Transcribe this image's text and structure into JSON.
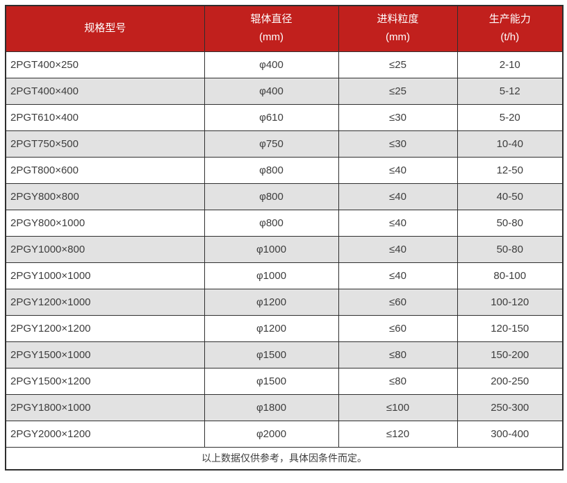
{
  "colors": {
    "header_bg": "#c1201d",
    "header_text": "#ffffff",
    "row_bg": "#ffffff",
    "row_alt_bg": "#e2e2e2",
    "border": "#2e2e2e",
    "cell_text": "#3d3d3d"
  },
  "table": {
    "columns": [
      {
        "title": "规格型号",
        "unit": ""
      },
      {
        "title": "辊体直径",
        "unit": "(mm)"
      },
      {
        "title": "进料粒度",
        "unit": "(mm)"
      },
      {
        "title": "生产能力",
        "unit": "(t/h)"
      }
    ],
    "rows": [
      {
        "model": "2PGT400×250",
        "roller_diameter": "φ400",
        "feed_size": "≤25",
        "capacity": "2-10"
      },
      {
        "model": "2PGT400×400",
        "roller_diameter": "φ400",
        "feed_size": "≤25",
        "capacity": "5-12"
      },
      {
        "model": "2PGT610×400",
        "roller_diameter": "φ610",
        "feed_size": "≤30",
        "capacity": "5-20"
      },
      {
        "model": "2PGT750×500",
        "roller_diameter": "φ750",
        "feed_size": "≤30",
        "capacity": "10-40"
      },
      {
        "model": "2PGT800×600",
        "roller_diameter": "φ800",
        "feed_size": "≤40",
        "capacity": "12-50"
      },
      {
        "model": "2PGY800×800",
        "roller_diameter": "φ800",
        "feed_size": "≤40",
        "capacity": "40-50"
      },
      {
        "model": "2PGY800×1000",
        "roller_diameter": "φ800",
        "feed_size": "≤40",
        "capacity": "50-80"
      },
      {
        "model": "2PGY1000×800",
        "roller_diameter": "φ1000",
        "feed_size": "≤40",
        "capacity": "50-80"
      },
      {
        "model": "2PGY1000×1000",
        "roller_diameter": "φ1000",
        "feed_size": "≤40",
        "capacity": "80-100"
      },
      {
        "model": "2PGY1200×1000",
        "roller_diameter": "φ1200",
        "feed_size": "≤60",
        "capacity": "100-120"
      },
      {
        "model": "2PGY1200×1200",
        "roller_diameter": "φ1200",
        "feed_size": "≤60",
        "capacity": "120-150"
      },
      {
        "model": "2PGY1500×1000",
        "roller_diameter": "φ1500",
        "feed_size": "≤80",
        "capacity": "150-200"
      },
      {
        "model": "2PGY1500×1200",
        "roller_diameter": "φ1500",
        "feed_size": "≤80",
        "capacity": "200-250"
      },
      {
        "model": "2PGY1800×1000",
        "roller_diameter": "φ1800",
        "feed_size": "≤100",
        "capacity": "250-300"
      },
      {
        "model": "2PGY2000×1200",
        "roller_diameter": "φ2000",
        "feed_size": "≤120",
        "capacity": "300-400"
      }
    ],
    "footer_note": "以上数据仅供参考，具体因条件而定。"
  }
}
